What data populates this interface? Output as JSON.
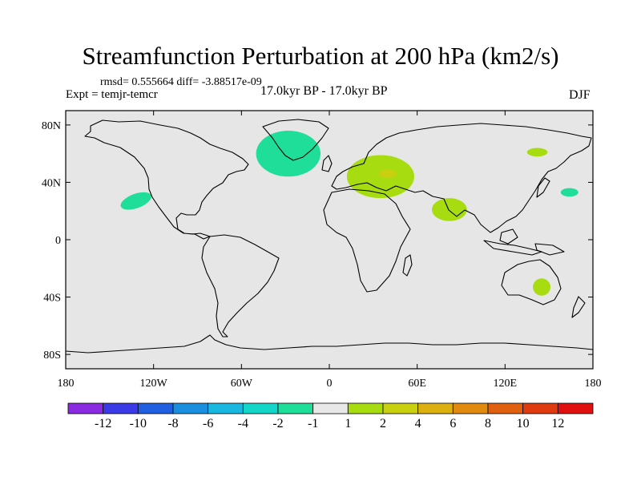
{
  "title": "Streamfunction Perturbation at 200 hPa (km2/s)",
  "stats": "rmsd= 0.555664 diff= -3.88517e-09",
  "experiment": "Expt = temjr-temcr",
  "period": "17.0kyr BP - 17.0kyr BP",
  "season": "DJF",
  "background_color": "#e6e6e6",
  "y_ticks": [
    {
      "lat": 80,
      "label": "80N"
    },
    {
      "lat": 40,
      "label": "40N"
    },
    {
      "lat": 0,
      "label": "0"
    },
    {
      "lat": -40,
      "label": "40S"
    },
    {
      "lat": -80,
      "label": "80S"
    }
  ],
  "x_ticks": [
    {
      "lon": -180,
      "label": "180"
    },
    {
      "lon": -120,
      "label": "120W"
    },
    {
      "lon": -60,
      "label": "60W"
    },
    {
      "lon": 0,
      "label": "0"
    },
    {
      "lon": 60,
      "label": "60E"
    },
    {
      "lon": 120,
      "label": "120E"
    },
    {
      "lon": 180,
      "label": "180"
    }
  ],
  "colorbar": {
    "colors": [
      "#8a2be2",
      "#3a3ae6",
      "#1f5fe0",
      "#1a8fe0",
      "#19b8e0",
      "#12d6c8",
      "#1fde9a",
      "#e8e8e8",
      "#a6dc10",
      "#c8d010",
      "#dcb010",
      "#e08a10",
      "#e06010",
      "#e03a10",
      "#e01010"
    ],
    "labels": [
      "-12",
      "-10",
      "-8",
      "-6",
      "-4",
      "-2",
      "-1",
      "1",
      "2",
      "4",
      "6",
      "8",
      "10",
      "12"
    ]
  },
  "features": [
    {
      "name": "north-atlantic-negative",
      "lon": -28,
      "lat": 60,
      "rlon": 22,
      "rlat": 16,
      "color": "#1fde9a"
    },
    {
      "name": "east-pacific-negative",
      "lon": -132,
      "lat": 27,
      "rlon": 11,
      "rlat": 5,
      "color": "#1fde9a",
      "rot": -20
    },
    {
      "name": "west-pacific-negative",
      "lon": 164,
      "lat": 33,
      "rlon": 6,
      "rlat": 3,
      "color": "#1fde9a"
    },
    {
      "name": "europe-positive",
      "lon": 35,
      "lat": 44,
      "rlon": 23,
      "rlat": 15,
      "color": "#a6dc10"
    },
    {
      "name": "europe-core-positive",
      "lon": 40,
      "lat": 46,
      "rlon": 6,
      "rlat": 3,
      "color": "#c8d010"
    },
    {
      "name": "south-asia-positive",
      "lon": 82,
      "lat": 21,
      "rlon": 12,
      "rlat": 8,
      "color": "#a6dc10"
    },
    {
      "name": "north-pacific-positive",
      "lon": 142,
      "lat": 61,
      "rlon": 7,
      "rlat": 3,
      "color": "#a6dc10"
    },
    {
      "name": "australia-positive",
      "lon": 145,
      "lat": -33,
      "rlon": 6,
      "rlat": 6,
      "color": "#a6dc10"
    }
  ]
}
